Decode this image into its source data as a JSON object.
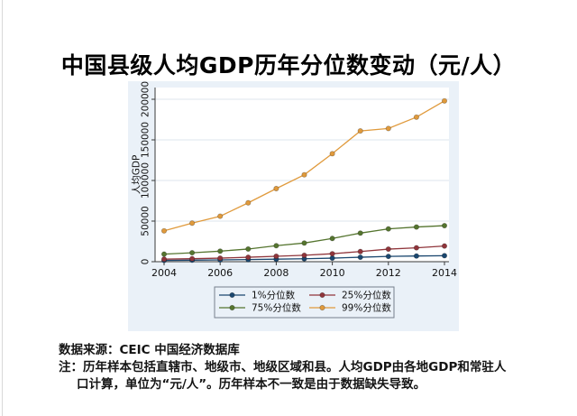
{
  "page": {
    "title": "中国县级人均GDP历年分位数变动（元/人）",
    "source_line": "数据来源：CEIC 中国经济数据库",
    "note_line1": "注：历年样本包括直辖市、地级市、地级区域和县。人均GDP由各地GDP和常驻人",
    "note_line2": "口计算，单位为“元/人”。历年样本不一致是由于数据缺失导致。"
  },
  "chart_data": {
    "type": "line",
    "title": "",
    "xlabel": "",
    "ylabel": "人均GDP",
    "x": [
      2004,
      2005,
      2006,
      2007,
      2008,
      2009,
      2010,
      2011,
      2012,
      2013,
      2014
    ],
    "x_ticks": [
      2004,
      2006,
      2008,
      2010,
      2012,
      2014
    ],
    "y_ticks": [
      0,
      50000,
      100000,
      150000,
      200000
    ],
    "xlim": [
      2004,
      2014
    ],
    "ylim": [
      0,
      200000
    ],
    "grid": "horizontal",
    "legend_position": "bottom",
    "background": "#eaf1f8",
    "plot_background": "#ffffff",
    "gridline_color": "#dde4ed",
    "axis_color": "#3a3a3a",
    "legend_border_color": "#76808c",
    "series": [
      {
        "name": "1%分位数",
        "color": "#1a476f",
        "values": [
          1600,
          1900,
          2200,
          2600,
          3100,
          3600,
          4400,
          5500,
          6500,
          7000,
          7400
        ]
      },
      {
        "name": "25%分位数",
        "color": "#90353b",
        "values": [
          3100,
          3700,
          4400,
          5500,
          6700,
          7900,
          9800,
          12500,
          15500,
          17100,
          19300
        ]
      },
      {
        "name": "75%分位数",
        "color": "#55752f",
        "values": [
          9300,
          11000,
          13000,
          15600,
          19700,
          23000,
          28600,
          35200,
          40400,
          42700,
          44400
        ]
      },
      {
        "name": "99%分位数",
        "color": "#e09a3c",
        "values": [
          38000,
          47500,
          56000,
          72500,
          90000,
          107000,
          133000,
          161000,
          164000,
          178000,
          198000
        ]
      }
    ]
  }
}
